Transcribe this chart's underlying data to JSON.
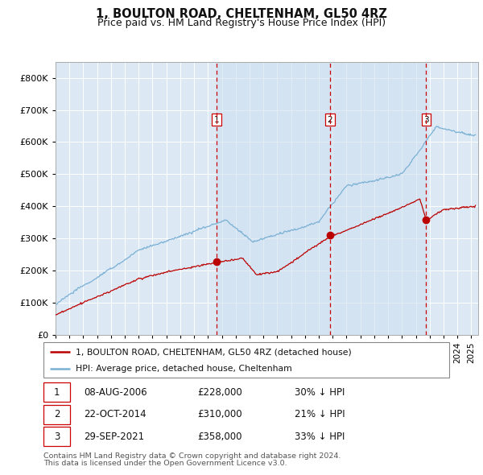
{
  "title": "1, BOULTON ROAD, CHELTENHAM, GL50 4RZ",
  "subtitle": "Price paid vs. HM Land Registry's House Price Index (HPI)",
  "legend_label_red": "1, BOULTON ROAD, CHELTENHAM, GL50 4RZ (detached house)",
  "legend_label_blue": "HPI: Average price, detached house, Cheltenham",
  "transactions": [
    {
      "num": 1,
      "date": "08-AUG-2006",
      "price": 228000,
      "hpi_note": "30% ↓ HPI"
    },
    {
      "num": 2,
      "date": "22-OCT-2014",
      "price": 310000,
      "hpi_note": "21% ↓ HPI"
    },
    {
      "num": 3,
      "date": "29-SEP-2021",
      "price": 358000,
      "hpi_note": "33% ↓ HPI"
    }
  ],
  "transaction_years": [
    2006.6,
    2014.8,
    2021.75
  ],
  "footnote1": "Contains HM Land Registry data © Crown copyright and database right 2024.",
  "footnote2": "This data is licensed under the Open Government Licence v3.0.",
  "ylim": [
    0,
    850000
  ],
  "yticks": [
    0,
    100000,
    200000,
    300000,
    400000,
    500000,
    600000,
    700000,
    800000
  ],
  "xlim_start": 1995,
  "xlim_end": 2025.5,
  "color_red": "#bb0000",
  "color_blue": "#7ab0d4",
  "color_bg": "#dce9f5",
  "color_grid": "#ffffff",
  "color_shade": "#cfe0f0",
  "vline_color": "#cc0000"
}
